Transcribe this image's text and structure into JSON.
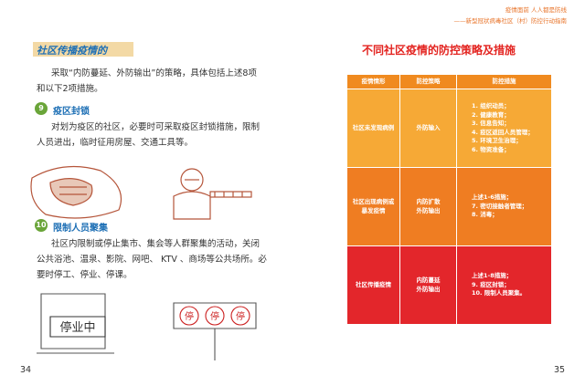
{
  "left_page": {
    "heading": "社区传播疫情的",
    "intro": [
      "采取“内防蔓延、外防输出”的策略，具体包括上述8项",
      "和以下2项措施。"
    ],
    "sections": [
      {
        "number": "9",
        "title": "疫区封锁",
        "lines": [
          "对划为疫区的社区，必要时可采取疫区封锁措施，限制",
          "人员进出，临时征用房屋、交通工具等。"
        ]
      },
      {
        "number": "10",
        "title": "限制人员聚集",
        "lines": [
          "社区内限制或停止集市、集会等人群聚集的活动，关闭",
          "公共浴池、温泉、影院、网吧、 KTV 、商场等公共场所。必",
          "要时停工、停业、停课。"
        ]
      }
    ],
    "sign_text": "停业中",
    "light_text": "停",
    "page_number": "34"
  },
  "right_page": {
    "header": {
      "line1": "疫情面前  人人都是防线",
      "line2": "——新型冠状病毒社区（村）防控行动指南"
    },
    "title": "不同社区疫情的防控策略及措施",
    "table": {
      "columns": [
        "疫情情形",
        "防控策略",
        "防控措施"
      ],
      "rows": [
        [
          [
            "社区未发现病例"
          ],
          [
            "外防输入"
          ],
          [
            "1. 组织动员；",
            "2. 健康教育；",
            "3. 信息告知；",
            "4. 疫区返回人员管理；",
            "5. 环境卫生治理；",
            "6. 物资准备；"
          ]
        ],
        [
          [
            "社区出现病例或",
            "暴发疫情"
          ],
          [
            "内防扩散",
            "外防输出"
          ],
          [
            "上述1-6措施；",
            "7. 密切接触者管理；",
            "8. 消毒；"
          ]
        ],
        [
          [
            "社区传播疫情"
          ],
          [
            "内防蔓延",
            "外防输出"
          ],
          [
            "上述1-8措施；",
            "9. 疫区封锁；",
            "10. 限制人员聚集。"
          ]
        ]
      ]
    },
    "page_number": "35"
  }
}
